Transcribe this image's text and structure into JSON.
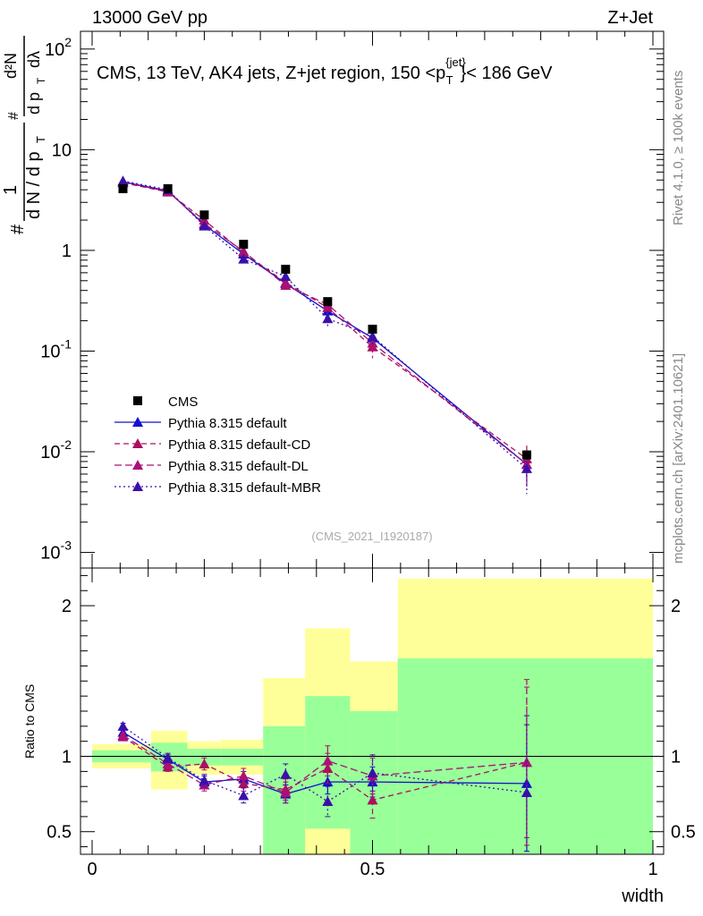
{
  "header": {
    "left": "13000 GeV pp",
    "right": "Z+Jet",
    "title": "CMS, 13 TeV, AK4 jets, Z+jet region, 150 <p",
    "title_sup": "{jet}",
    "title_sub": "T",
    "title_tail": "}< 186 GeV",
    "side_rivet": "Rivet 4.1.0, ≥ 100k events",
    "side_mcplots": "mcplots.cern.ch [arXiv:2401.10621]",
    "analysis": "(CMS_2021_I1920187)"
  },
  "colors": {
    "cms": "#000000",
    "default": "#1010cc",
    "cd": "#aa1060",
    "dl": "#aa1078",
    "mbr": "#3a10aa",
    "band_yellow": "#ffff99",
    "band_green": "#99ff99"
  },
  "chart_data": [
    {
      "type": "scatter",
      "scale": "log",
      "ylabel": "1/dN/dp_T dN²/dp_T dλ",
      "ylim": [
        0.0007,
        150
      ],
      "xlim": [
        0,
        1
      ],
      "y_tick_labels": [
        "10^-3",
        "10^-2",
        "10^-1",
        "1",
        "10",
        "10^2"
      ],
      "legend": [
        "CMS",
        "Pythia 8.315 default",
        "Pythia 8.315 default-CD",
        "Pythia 8.315 default-DL",
        "Pythia 8.315 default-MBR"
      ],
      "x": [
        0.055,
        0.135,
        0.2,
        0.27,
        0.345,
        0.42,
        0.5,
        0.775
      ],
      "series": [
        {
          "name": "CMS",
          "values": [
            4.1,
            4.1,
            2.25,
            1.15,
            0.65,
            0.31,
            0.165,
            0.0093
          ]
        },
        {
          "name": "Pythia 8.315 default",
          "values": [
            4.8,
            3.9,
            1.8,
            0.92,
            0.47,
            0.25,
            0.135,
            0.0075
          ],
          "err_up": [
            0.2,
            0.15,
            0.1,
            0.06,
            0.04,
            0.03,
            0.02,
            0.0025
          ],
          "err_down": [
            0.2,
            0.15,
            0.1,
            0.06,
            0.04,
            0.03,
            0.02,
            0.0025
          ]
        },
        {
          "name": "Pythia 8.315 default-CD",
          "values": [
            4.7,
            3.8,
            2.0,
            0.95,
            0.48,
            0.27,
            0.11,
            0.0085
          ],
          "err_up": [
            0.2,
            0.15,
            0.1,
            0.06,
            0.05,
            0.04,
            0.025,
            0.003
          ],
          "err_down": [
            0.2,
            0.15,
            0.1,
            0.06,
            0.05,
            0.04,
            0.025,
            0.003
          ]
        },
        {
          "name": "Pythia 8.315 default-DL",
          "values": [
            4.75,
            3.85,
            1.85,
            0.98,
            0.45,
            0.29,
            0.12,
            0.0075
          ],
          "err_up": [
            0.2,
            0.15,
            0.1,
            0.06,
            0.05,
            0.04,
            0.025,
            0.003
          ],
          "err_down": [
            0.2,
            0.15,
            0.1,
            0.06,
            0.05,
            0.04,
            0.025,
            0.003
          ]
        },
        {
          "name": "Pythia 8.315 default-MBR",
          "values": [
            4.9,
            4.0,
            1.75,
            0.82,
            0.55,
            0.21,
            0.14,
            0.0068
          ],
          "err_up": [
            0.2,
            0.15,
            0.1,
            0.06,
            0.05,
            0.04,
            0.025,
            0.003
          ],
          "err_down": [
            0.2,
            0.15,
            0.1,
            0.06,
            0.05,
            0.04,
            0.025,
            0.003
          ]
        }
      ]
    },
    {
      "type": "scatter",
      "ylabel": "Ratio to CMS",
      "xlabel": "width",
      "ylim": [
        0.35,
        2.25
      ],
      "xlim": [
        0,
        1
      ],
      "x_tick_labels": [
        "0",
        "0.5",
        "1"
      ],
      "y_tick_labels": [
        "0.5",
        "1",
        "2"
      ],
      "bands": {
        "edges": [
          0.0,
          0.105,
          0.17,
          0.23,
          0.305,
          0.38,
          0.46,
          0.545,
          1.0
        ],
        "yellow_low": [
          0.92,
          0.78,
          0.88,
          0.88,
          0.35,
          0.35,
          0.37,
          0.35
        ],
        "yellow_high": [
          1.08,
          1.17,
          1.1,
          1.11,
          1.52,
          1.85,
          1.63,
          2.18
        ],
        "green_low": [
          0.96,
          0.9,
          0.94,
          0.94,
          0.35,
          0.52,
          0.35,
          0.35
        ],
        "green_high": [
          1.04,
          1.09,
          1.05,
          1.05,
          1.2,
          1.4,
          1.3,
          1.65
        ]
      },
      "x": [
        0.055,
        0.135,
        0.2,
        0.27,
        0.345,
        0.42,
        0.5,
        0.775
      ],
      "series": [
        {
          "name": "Pythia 8.315 default",
          "values": [
            1.16,
            0.98,
            0.83,
            0.85,
            0.75,
            0.83,
            0.83,
            0.82
          ],
          "err": [
            0.02,
            0.03,
            0.04,
            0.05,
            0.06,
            0.08,
            0.1,
            0.45
          ]
        },
        {
          "name": "Pythia 8.315 default-CD",
          "values": [
            1.13,
            0.93,
            0.95,
            0.82,
            0.78,
            0.92,
            0.71,
            0.96
          ],
          "err": [
            0.02,
            0.03,
            0.04,
            0.05,
            0.07,
            0.1,
            0.12,
            0.55
          ]
        },
        {
          "name": "Pythia 8.315 default-DL",
          "values": [
            1.14,
            0.95,
            0.81,
            0.87,
            0.76,
            0.97,
            0.87,
            0.96
          ],
          "err": [
            0.02,
            0.03,
            0.04,
            0.05,
            0.07,
            0.1,
            0.12,
            0.5
          ]
        },
        {
          "name": "Pythia 8.315 default-MBR",
          "values": [
            1.2,
            0.99,
            0.84,
            0.74,
            0.88,
            0.7,
            0.89,
            0.76
          ],
          "err": [
            0.02,
            0.03,
            0.04,
            0.05,
            0.07,
            0.1,
            0.12,
            0.45
          ]
        }
      ]
    }
  ]
}
